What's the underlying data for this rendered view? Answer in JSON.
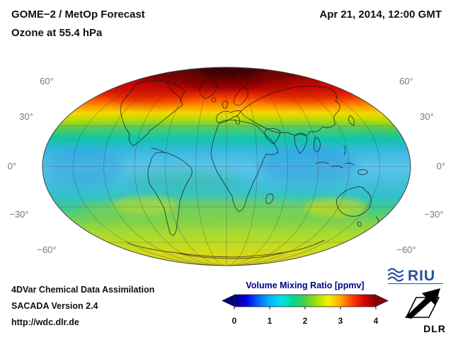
{
  "header": {
    "title_line1": "GOME−2 / MetOp Forecast",
    "title_line2": "Ozone at 55.4 hPa",
    "date": "Apr 21, 2014, 12:00 GMT"
  },
  "map": {
    "lat_labels": [
      "60°",
      "30°",
      "0°",
      "−30°",
      "−60°"
    ]
  },
  "footer": {
    "line1": "4DVar Chemical Data Assimilation",
    "line2": "SACADA Version 2.4",
    "line3": "http://wdc.dlr.de"
  },
  "colorbar": {
    "label": "Volume Mixing Ratio [ppmv]",
    "ticks": [
      "0",
      "1",
      "2",
      "3",
      "4"
    ]
  },
  "logos": {
    "riu": "RIU",
    "dlr": "DLR"
  },
  "chart_data": {
    "type": "heatmap",
    "title": "GOME−2 / MetOp Forecast — Ozone at 55.4 hPa",
    "timestamp": "Apr 21, 2014, 12:00 GMT",
    "projection": "mollweide-global",
    "colorbar": {
      "label": "Volume Mixing Ratio [ppmv]",
      "units": "ppmv",
      "range": [
        0,
        4
      ],
      "ticks": [
        0,
        1,
        2,
        3,
        4
      ],
      "colors": [
        "#000080",
        "#0000e0",
        "#0060ff",
        "#00b4ff",
        "#00e0e8",
        "#00d890",
        "#48d048",
        "#a8e000",
        "#f8f000",
        "#ffa800",
        "#ff4000",
        "#d80000",
        "#8c0000"
      ]
    },
    "latitude_gridlines_deg": [
      60,
      30,
      0,
      -30,
      -60
    ],
    "longitude_gridline_spacing_deg": 30,
    "approx_zonal_mean_ppmv": [
      {
        "lat": 85,
        "value": 4.0
      },
      {
        "lat": 70,
        "value": 3.7
      },
      {
        "lat": 60,
        "value": 3.1
      },
      {
        "lat": 45,
        "value": 2.4
      },
      {
        "lat": 30,
        "value": 1.7
      },
      {
        "lat": 15,
        "value": 1.4
      },
      {
        "lat": 0,
        "value": 1.3
      },
      {
        "lat": -15,
        "value": 1.4
      },
      {
        "lat": -30,
        "value": 1.8
      },
      {
        "lat": -45,
        "value": 2.0
      },
      {
        "lat": -60,
        "value": 2.2
      },
      {
        "lat": -80,
        "value": 2.4
      }
    ],
    "notes": "Maximum (≈4 ppmv, dark red) centered over the Arctic pole; minimum (≈1.2–1.4 ppmv, cyan-blue) in the tropics; secondary yellow-green band (≈2 ppmv) near 30–60°S and over Antarctica."
  }
}
